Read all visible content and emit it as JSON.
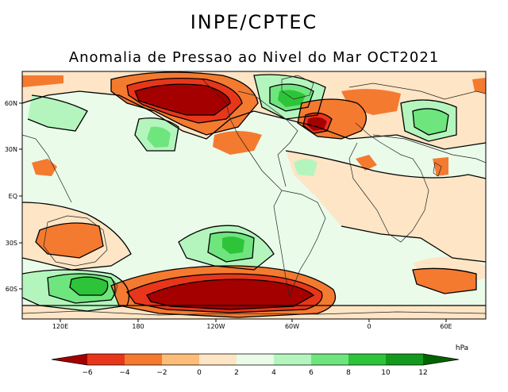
{
  "header": {
    "title": "INPE/CPTEC",
    "subtitle": "Anomalia de Pressao ao Nivel do Mar OCT2021"
  },
  "map": {
    "lat_labels": [
      "60N",
      "30N",
      "EQ",
      "30S",
      "60S"
    ],
    "lon_labels": [
      "120E",
      "180",
      "120W",
      "60W",
      "0",
      "60E"
    ]
  },
  "legend": {
    "unit": "hPa",
    "ticks": [
      "−6",
      "−4",
      "−2",
      "0",
      "2",
      "4",
      "6",
      "8",
      "10",
      "12"
    ],
    "colors": [
      "#a50000",
      "#e8361a",
      "#f47a30",
      "#fbbd77",
      "#fde5c5",
      "#eafbea",
      "#b4f5be",
      "#6fe57e",
      "#2dc43a",
      "#139a1e",
      "#006400"
    ]
  },
  "colors": {
    "background": "#ffffff",
    "coast": "#000000",
    "contour": "#000000"
  }
}
